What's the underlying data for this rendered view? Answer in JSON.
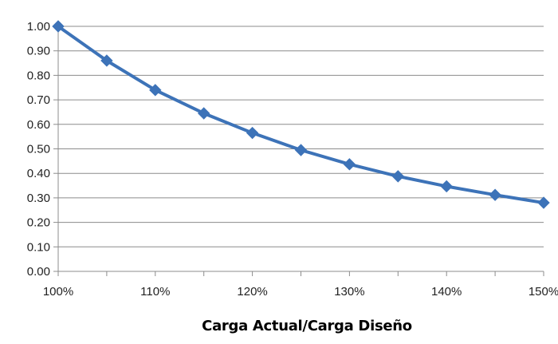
{
  "chart_data": {
    "type": "line",
    "title": "",
    "xlabel": "Carga Actual/Carga Diseño",
    "ylabel": "",
    "x": [
      "100%",
      "105%",
      "110%",
      "115%",
      "120%",
      "125%",
      "130%",
      "135%",
      "140%",
      "145%",
      "150%"
    ],
    "x_values": [
      100,
      105,
      110,
      115,
      120,
      125,
      130,
      135,
      140,
      145,
      150
    ],
    "xtick_labels": [
      "100%",
      "110%",
      "120%",
      "130%",
      "140%",
      "150%"
    ],
    "ytick_labels": [
      "0.00",
      "0.10",
      "0.20",
      "0.30",
      "0.40",
      "0.50",
      "0.60",
      "0.70",
      "0.80",
      "0.90",
      "1.00"
    ],
    "series": [
      {
        "values": [
          1.0,
          0.86,
          0.74,
          0.645,
          0.565,
          0.495,
          0.437,
          0.388,
          0.347,
          0.312,
          0.28
        ],
        "color": "#3d73b8",
        "marker": "diamond"
      }
    ],
    "xlim": [
      100,
      150
    ],
    "ylim": [
      0,
      1.0
    ],
    "grid": true,
    "legend": "none"
  }
}
